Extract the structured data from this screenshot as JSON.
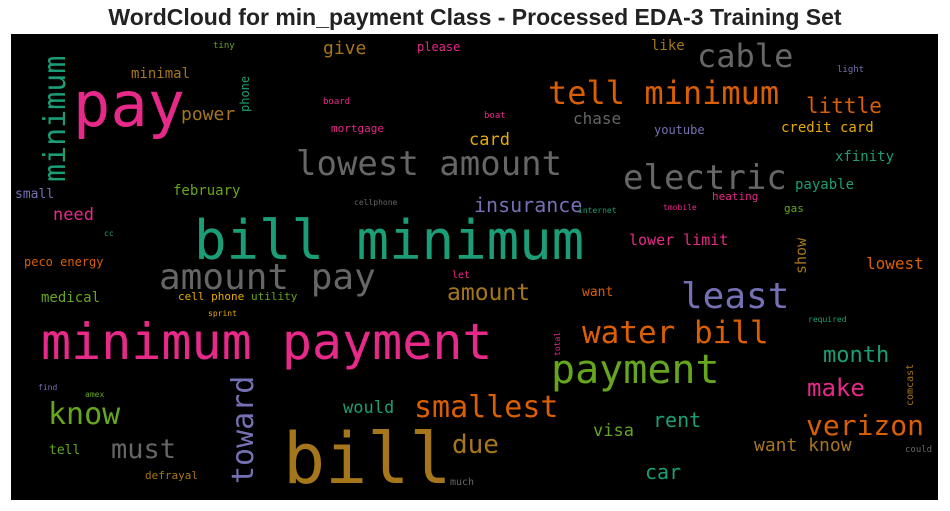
{
  "title": "WordCloud for min_payment Class - Processed EDA-3 Training Set",
  "words": [
    {
      "text": "minimum payment",
      "color": "#e7298a"
    },
    {
      "text": "bill minimum",
      "color": "#1b9e77"
    },
    {
      "text": "bill",
      "color": "#a6761d"
    },
    {
      "text": "pay",
      "color": "#e7298a"
    },
    {
      "text": "amount pay",
      "color": "#666666"
    },
    {
      "text": "lowest amount",
      "color": "#666666"
    },
    {
      "text": "payment",
      "color": "#66a61e"
    },
    {
      "text": "electric",
      "color": "#666666"
    },
    {
      "text": "tell minimum",
      "color": "#d95f02"
    },
    {
      "text": "cable",
      "color": "#666666"
    },
    {
      "text": "least",
      "color": "#7570b3"
    },
    {
      "text": "water bill",
      "color": "#d95f02"
    },
    {
      "text": "smallest",
      "color": "#d95f02"
    },
    {
      "text": "verizon",
      "color": "#d95f02"
    },
    {
      "text": "know",
      "color": "#66a61e"
    },
    {
      "text": "must",
      "color": "#666666"
    },
    {
      "text": "toward",
      "color": "#7570b3"
    },
    {
      "text": "minimum",
      "color": "#1b9e77"
    },
    {
      "text": "make",
      "color": "#e7298a"
    },
    {
      "text": "month",
      "color": "#1b9e77"
    },
    {
      "text": "due",
      "color": "#a6761d"
    },
    {
      "text": "amount",
      "color": "#a6761d"
    },
    {
      "text": "insurance",
      "color": "#7570b3"
    },
    {
      "text": "little",
      "color": "#d95f02"
    },
    {
      "text": "car",
      "color": "#1b9e77"
    },
    {
      "text": "rent",
      "color": "#1b9e77"
    },
    {
      "text": "want know",
      "color": "#a6761d"
    },
    {
      "text": "power",
      "color": "#a6761d"
    },
    {
      "text": "give",
      "color": "#a6761d"
    },
    {
      "text": "card",
      "color": "#e6ab02"
    },
    {
      "text": "chase",
      "color": "#666666"
    },
    {
      "text": "need",
      "color": "#e7298a"
    },
    {
      "text": "visa",
      "color": "#66a61e"
    },
    {
      "text": "would",
      "color": "#1b9e77"
    },
    {
      "text": "lowest",
      "color": "#d95f02"
    },
    {
      "text": "lower limit",
      "color": "#e7298a"
    },
    {
      "text": "show",
      "color": "#a6761d"
    },
    {
      "text": "credit card",
      "color": "#e6ab02"
    },
    {
      "text": "xfinity",
      "color": "#1b9e77"
    },
    {
      "text": "payable",
      "color": "#1b9e77"
    },
    {
      "text": "youtube",
      "color": "#7570b3"
    },
    {
      "text": "february",
      "color": "#66a61e"
    },
    {
      "text": "minimal",
      "color": "#a6761d"
    },
    {
      "text": "medical",
      "color": "#66a61e"
    },
    {
      "text": "want",
      "color": "#d95f02"
    },
    {
      "text": "like",
      "color": "#a6761d"
    },
    {
      "text": "please",
      "color": "#e7298a"
    },
    {
      "text": "mortgage",
      "color": "#e7298a"
    },
    {
      "text": "peco energy",
      "color": "#d95f02"
    },
    {
      "text": "phone",
      "color": "#1b9e77"
    },
    {
      "text": "tell",
      "color": "#66a61e"
    },
    {
      "text": "small",
      "color": "#7570b3"
    },
    {
      "text": "cell phone",
      "color": "#e6ab02"
    },
    {
      "text": "utility",
      "color": "#66a61e"
    },
    {
      "text": "heating",
      "color": "#e7298a"
    },
    {
      "text": "gas",
      "color": "#66a61e"
    },
    {
      "text": "defrayal",
      "color": "#a6761d"
    },
    {
      "text": "comcast",
      "color": "#a6761d"
    },
    {
      "text": "tiny",
      "color": "#66a61e"
    },
    {
      "text": "light",
      "color": "#7570b3"
    },
    {
      "text": "board",
      "color": "#e7298a"
    },
    {
      "text": "boat",
      "color": "#e7298a"
    },
    {
      "text": "cellphone",
      "color": "#666666"
    },
    {
      "text": "internet",
      "color": "#1b9e77"
    },
    {
      "text": "tmobile",
      "color": "#e7298a"
    },
    {
      "text": "cc",
      "color": "#1b9e77"
    },
    {
      "text": "let",
      "color": "#e7298a"
    },
    {
      "text": "sprint",
      "color": "#e6ab02"
    },
    {
      "text": "required",
      "color": "#1b9e77"
    },
    {
      "text": "total",
      "color": "#e7298a"
    },
    {
      "text": "find",
      "color": "#7570b3"
    },
    {
      "text": "amex",
      "color": "#66a61e"
    },
    {
      "text": "much",
      "color": "#666666"
    },
    {
      "text": "could",
      "color": "#666666"
    }
  ]
}
